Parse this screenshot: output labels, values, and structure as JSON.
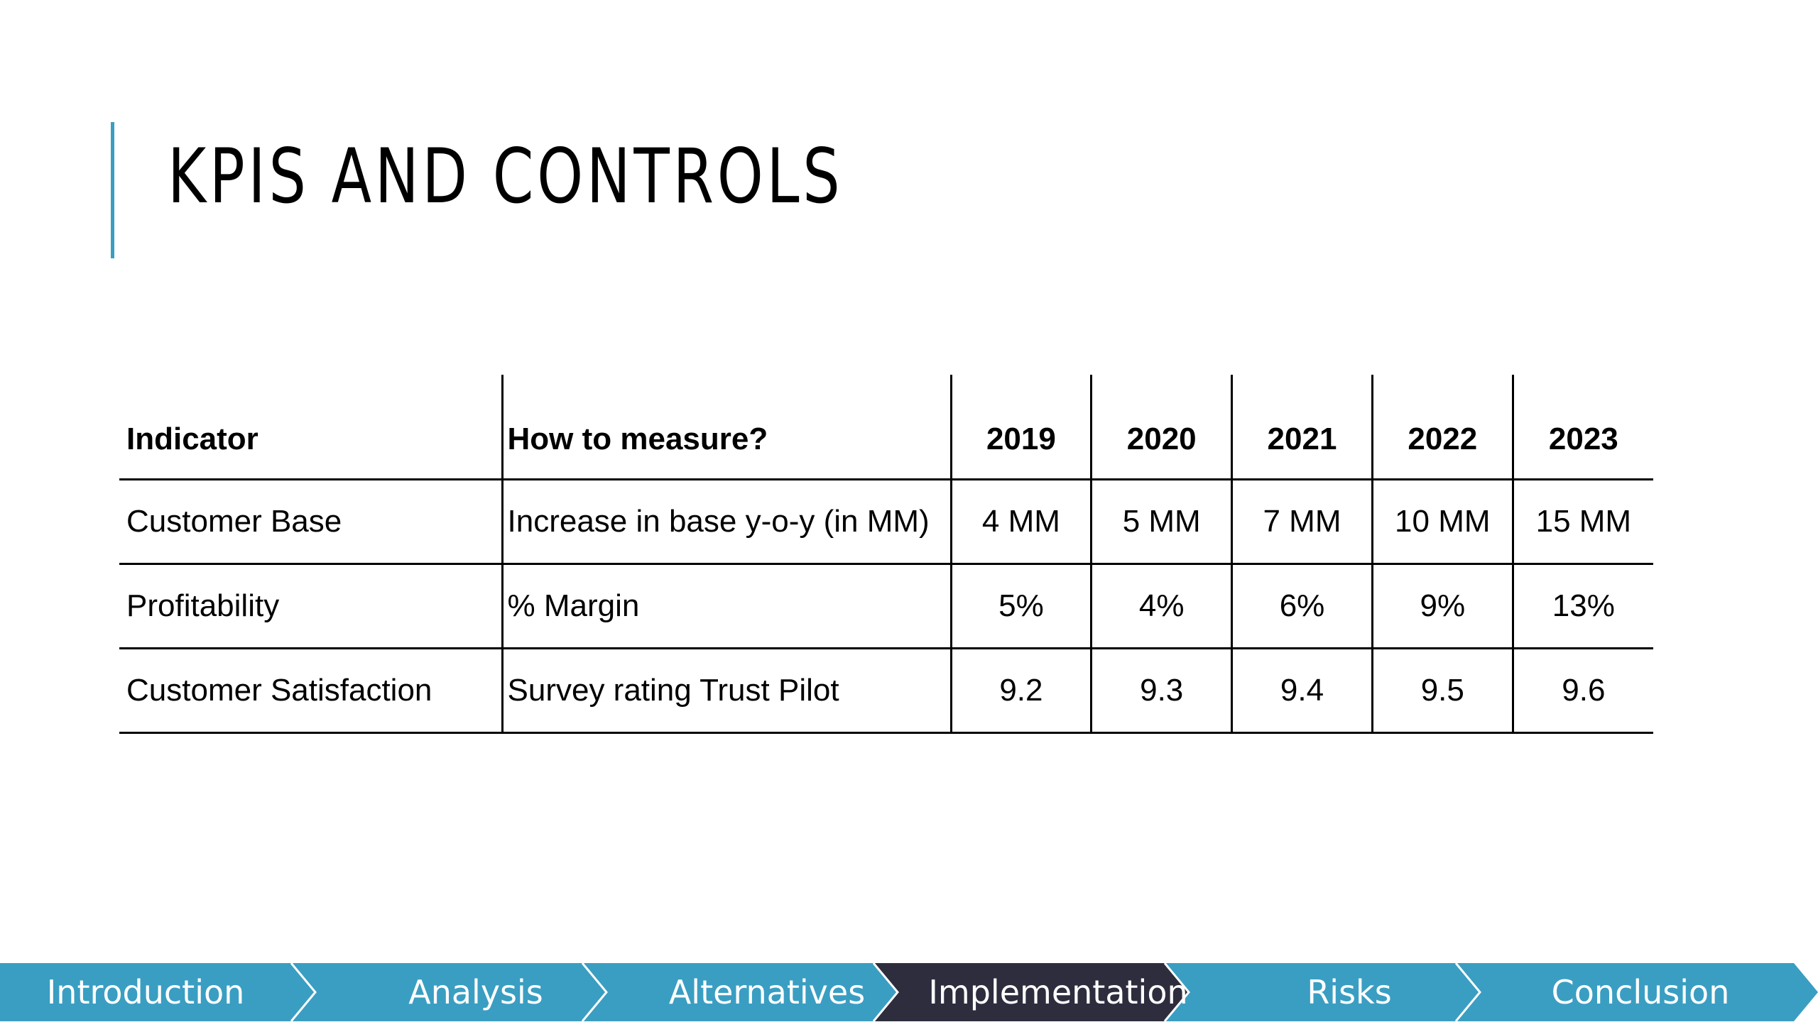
{
  "slide": {
    "title": "KPIS AND CONTROLS"
  },
  "table": {
    "headers": {
      "indicator": "Indicator",
      "how": "How to measure?",
      "years": [
        "2019",
        "2020",
        "2021",
        "2022",
        "2023"
      ]
    },
    "rows": [
      {
        "indicator": "Customer Base",
        "how": "Increase in base y-o-y (in MM)",
        "values": [
          "4 MM",
          "5 MM",
          "7 MM",
          "10 MM",
          "15 MM"
        ]
      },
      {
        "indicator": "Profitability",
        "how": "% Margin",
        "values": [
          "5%",
          "4%",
          "6%",
          "9%",
          "13%"
        ]
      },
      {
        "indicator": "Customer Satisfaction",
        "how": "Survey rating Trust Pilot",
        "values": [
          "9.2",
          "9.3",
          "9.4",
          "9.5",
          "9.6"
        ]
      }
    ]
  },
  "nav": {
    "items": [
      {
        "label": "Introduction"
      },
      {
        "label": "Analysis"
      },
      {
        "label": "Alternatives"
      },
      {
        "label": "Implementation"
      },
      {
        "label": "Risks"
      },
      {
        "label": "Conclusion"
      }
    ],
    "active": "Implementation",
    "colors": {
      "default": "#3a9ec2",
      "active": "#2d2d3e",
      "separator": "#ffffff",
      "accent": "#3a9ec2"
    }
  }
}
